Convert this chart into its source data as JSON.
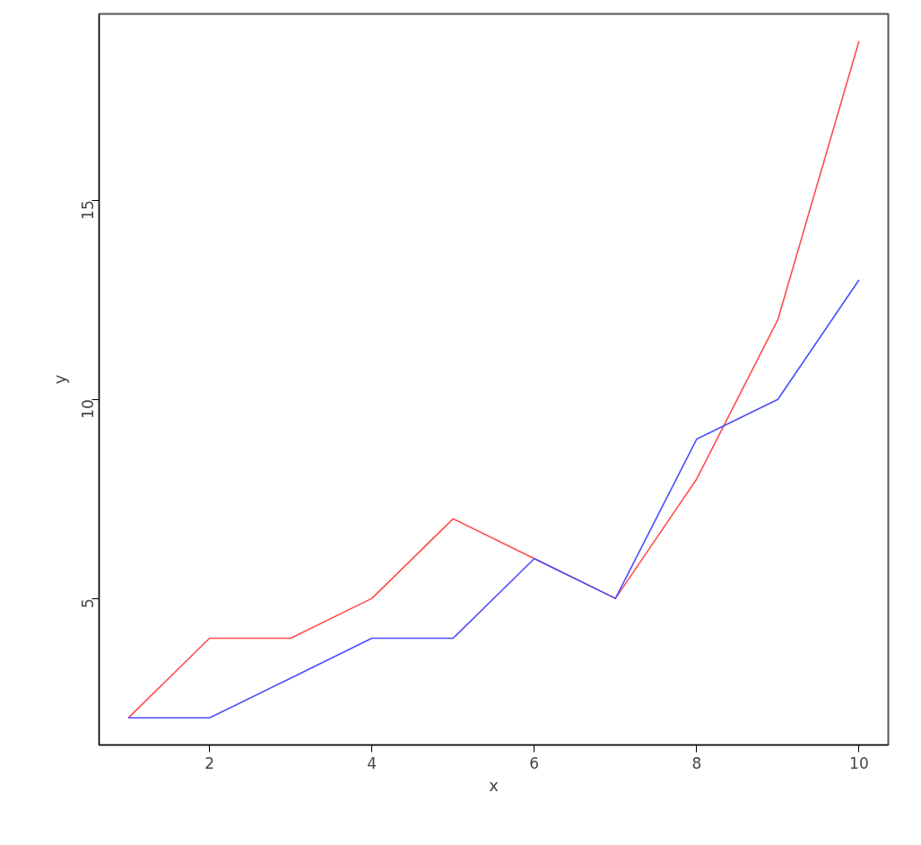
{
  "chart_data": {
    "type": "line",
    "xlabel": "x",
    "ylabel": "y",
    "x": [
      1,
      2,
      3,
      4,
      5,
      6,
      7,
      8,
      9,
      10
    ],
    "series": [
      {
        "color": "#ff4d4d",
        "values": [
          2,
          4,
          4,
          5,
          7,
          6,
          5,
          8,
          12,
          19
        ]
      },
      {
        "color": "#4d4dff",
        "values": [
          2,
          2,
          3,
          4,
          4,
          6,
          5,
          9,
          10,
          13
        ]
      }
    ],
    "xlim": [
      0.64,
      10.36
    ],
    "ylim": [
      1.32,
      19.68
    ],
    "xticks": [
      2,
      4,
      6,
      8,
      10
    ],
    "yticks": [
      5,
      10,
      15
    ],
    "grid": false,
    "marker": "none",
    "line_style": "solid"
  }
}
